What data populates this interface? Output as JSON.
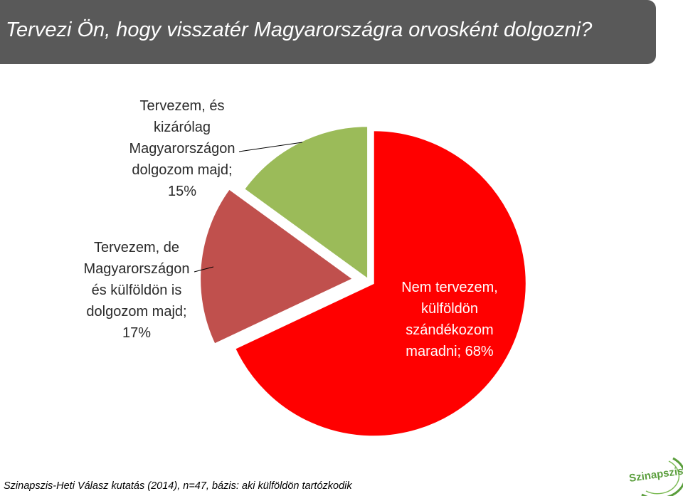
{
  "header": {
    "title": "Tervezi Ön, hogy visszatér Magyarországra orvosként dolgozni?"
  },
  "chart_data": {
    "type": "pie",
    "title": "Tervezi Ön, hogy visszatér Magyarországra orvosként dolgozni?",
    "slices": [
      {
        "label": "Nem tervezem, külföldön szándékozom maradni",
        "value": 68,
        "text_lines": [
          "Nem tervezem,",
          "külföldön",
          "szándékozom",
          "maradni; 68%"
        ],
        "color": "#ff0000"
      },
      {
        "label": "Tervezem, de Magyarországon és külföldön is dolgozom majd",
        "value": 17,
        "text_lines": [
          "Tervezem, de",
          "Magyarországon",
          "és külföldön is",
          "dolgozom majd;",
          "17%"
        ],
        "color": "#c0504d"
      },
      {
        "label": "Tervezem, és kizárólag Magyarországon dolgozom majd",
        "value": 15,
        "text_lines": [
          "Tervezem, és",
          "kizárólag",
          "Magyarországon",
          "dolgozom majd;",
          "15%"
        ],
        "color": "#9bbb59"
      }
    ],
    "start_angle_deg": 0,
    "direction": "clockwise",
    "exploded": true
  },
  "footer": {
    "source": "Szinapszis-Heti Válasz kutatás (2014), n=47, bázis: aki külföldön tartózkodik"
  },
  "logo": {
    "text": "Szinapszis",
    "color": "#5a9e3c"
  }
}
